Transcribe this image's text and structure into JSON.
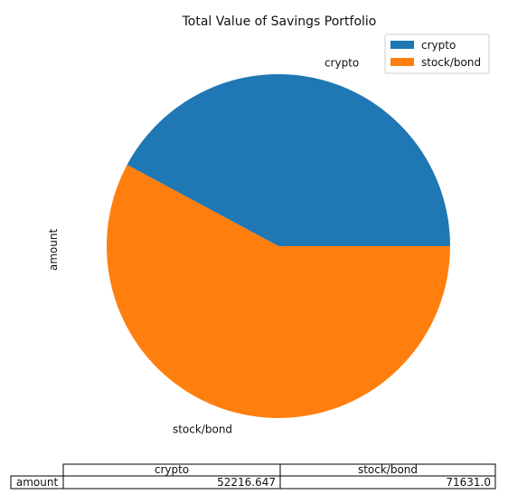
{
  "chart_data": {
    "type": "pie",
    "title": "Total Value of Savings Portfolio",
    "ylabel": "amount",
    "categories": [
      "crypto",
      "stock/bond"
    ],
    "values": [
      52216.647,
      71631.0
    ],
    "colors": [
      "#1f77b4",
      "#ff7f0e"
    ],
    "start_angle_deg": 0,
    "direction": "counterclockwise",
    "legend": {
      "placement": "top-right",
      "entries": [
        "crypto",
        "stock/bond"
      ]
    },
    "table": {
      "columns": [
        "crypto",
        "stock/bond"
      ],
      "row_label": "amount",
      "cells": [
        "52216.647",
        "71631.0"
      ]
    }
  }
}
